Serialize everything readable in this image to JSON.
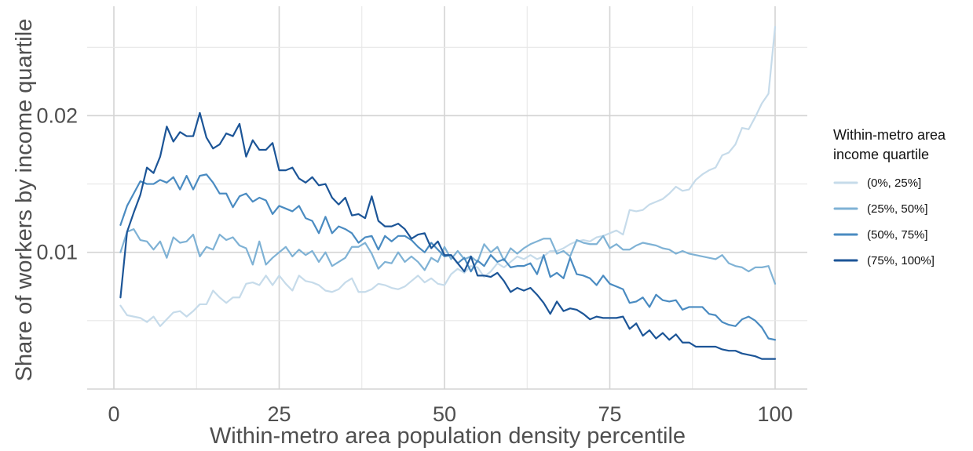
{
  "chart_data": {
    "type": "line",
    "title": "",
    "xlabel": "Within-metro area population density percentile",
    "ylabel": "Share of workers by income quartile",
    "xlim": [
      1,
      100
    ],
    "ylim": [
      0.0,
      0.028
    ],
    "x_ticks": [
      0,
      25,
      50,
      75,
      100
    ],
    "x_tick_labels": [
      "0",
      "25",
      "50",
      "75",
      "100"
    ],
    "y_ticks": [
      0.01,
      0.02
    ],
    "y_tick_labels": [
      "0.01",
      "0.02"
    ],
    "grid": true,
    "legend_position": "right",
    "legend_title_lines": [
      "Within-metro area",
      "income quartile"
    ],
    "series": [
      {
        "name": "(0%, 25%]",
        "color": "#c6dbea",
        "x": [
          1,
          2,
          3,
          4,
          5,
          6,
          7,
          8,
          9,
          10,
          11,
          12,
          13,
          14,
          15,
          16,
          17,
          18,
          19,
          20,
          21,
          22,
          23,
          24,
          25,
          26,
          27,
          28,
          29,
          30,
          31,
          32,
          33,
          34,
          35,
          36,
          37,
          38,
          39,
          40,
          41,
          42,
          43,
          44,
          45,
          46,
          47,
          48,
          49,
          50,
          51,
          52,
          53,
          54,
          55,
          56,
          57,
          58,
          59,
          60,
          61,
          62,
          63,
          64,
          65,
          66,
          67,
          68,
          69,
          70,
          71,
          72,
          73,
          74,
          75,
          76,
          77,
          78,
          79,
          80,
          81,
          82,
          83,
          84,
          85,
          86,
          87,
          88,
          89,
          90,
          91,
          92,
          93,
          94,
          95,
          96,
          97,
          98,
          99,
          100
        ],
        "values": [
          0.0061,
          0.0054,
          0.0053,
          0.0052,
          0.0049,
          0.0053,
          0.0046,
          0.0051,
          0.0056,
          0.0057,
          0.0053,
          0.0057,
          0.0062,
          0.0062,
          0.0072,
          0.0067,
          0.0063,
          0.0067,
          0.0067,
          0.0077,
          0.0078,
          0.0076,
          0.0083,
          0.0076,
          0.0083,
          0.0077,
          0.0072,
          0.0083,
          0.0079,
          0.0078,
          0.0076,
          0.0072,
          0.0071,
          0.0073,
          0.0078,
          0.0081,
          0.0071,
          0.0071,
          0.0073,
          0.0077,
          0.0076,
          0.0074,
          0.0073,
          0.0075,
          0.0079,
          0.0083,
          0.0078,
          0.0081,
          0.0077,
          0.0076,
          0.0084,
          0.0088,
          0.0085,
          0.009,
          0.0089,
          0.0082,
          0.0086,
          0.0092,
          0.0089,
          0.0093,
          0.0097,
          0.0095,
          0.0098,
          0.0095,
          0.0097,
          0.0101,
          0.0101,
          0.0103,
          0.0106,
          0.0108,
          0.0109,
          0.0108,
          0.0111,
          0.0112,
          0.0114,
          0.0116,
          0.0113,
          0.0131,
          0.013,
          0.0131,
          0.0135,
          0.0137,
          0.0139,
          0.0143,
          0.0148,
          0.0145,
          0.0146,
          0.0153,
          0.0157,
          0.016,
          0.0162,
          0.0171,
          0.0173,
          0.0179,
          0.0191,
          0.019,
          0.0199,
          0.0209,
          0.0216,
          0.0265
        ]
      },
      {
        "name": "(25%, 50%]",
        "color": "#7fb2d5",
        "x": [
          1,
          2,
          3,
          4,
          5,
          6,
          7,
          8,
          9,
          10,
          11,
          12,
          13,
          14,
          15,
          16,
          17,
          18,
          19,
          20,
          21,
          22,
          23,
          24,
          25,
          26,
          27,
          28,
          29,
          30,
          31,
          32,
          33,
          34,
          35,
          36,
          37,
          38,
          39,
          40,
          41,
          42,
          43,
          44,
          45,
          46,
          47,
          48,
          49,
          50,
          51,
          52,
          53,
          54,
          55,
          56,
          57,
          58,
          59,
          60,
          61,
          62,
          63,
          64,
          65,
          66,
          67,
          68,
          69,
          70,
          71,
          72,
          73,
          74,
          75,
          76,
          77,
          78,
          79,
          80,
          81,
          82,
          83,
          84,
          85,
          86,
          87,
          88,
          89,
          90,
          91,
          92,
          93,
          94,
          95,
          96,
          97,
          98,
          99,
          100
        ],
        "values": [
          0.01,
          0.0115,
          0.0117,
          0.0109,
          0.0108,
          0.0102,
          0.0108,
          0.0096,
          0.0111,
          0.0107,
          0.0108,
          0.0113,
          0.0097,
          0.0104,
          0.0102,
          0.0113,
          0.0109,
          0.0111,
          0.0105,
          0.0103,
          0.0091,
          0.0108,
          0.0091,
          0.0096,
          0.01,
          0.0104,
          0.0097,
          0.0102,
          0.0098,
          0.0101,
          0.0093,
          0.01,
          0.009,
          0.0093,
          0.0096,
          0.0104,
          0.0104,
          0.0107,
          0.0099,
          0.0088,
          0.0093,
          0.0092,
          0.01,
          0.0093,
          0.0097,
          0.0093,
          0.0087,
          0.0096,
          0.0093,
          0.0104,
          0.0095,
          0.0101,
          0.0095,
          0.0097,
          0.0093,
          0.0106,
          0.01,
          0.0104,
          0.0094,
          0.0103,
          0.0099,
          0.0103,
          0.0106,
          0.0108,
          0.011,
          0.011,
          0.0099,
          0.0101,
          0.0097,
          0.0109,
          0.0107,
          0.0106,
          0.0106,
          0.0112,
          0.0103,
          0.0106,
          0.0102,
          0.0102,
          0.0105,
          0.0107,
          0.0106,
          0.0105,
          0.0103,
          0.0102,
          0.0099,
          0.0101,
          0.0099,
          0.0098,
          0.0097,
          0.0096,
          0.0095,
          0.0098,
          0.0092,
          0.009,
          0.0089,
          0.0086,
          0.0089,
          0.0089,
          0.009,
          0.0077
        ]
      },
      {
        "name": "(50%, 75%]",
        "color": "#4a8bc1",
        "x": [
          1,
          2,
          3,
          4,
          5,
          6,
          7,
          8,
          9,
          10,
          11,
          12,
          13,
          14,
          15,
          16,
          17,
          18,
          19,
          20,
          21,
          22,
          23,
          24,
          25,
          26,
          27,
          28,
          29,
          30,
          31,
          32,
          33,
          34,
          35,
          36,
          37,
          38,
          39,
          40,
          41,
          42,
          43,
          44,
          45,
          46,
          47,
          48,
          49,
          50,
          51,
          52,
          53,
          54,
          55,
          56,
          57,
          58,
          59,
          60,
          61,
          62,
          63,
          64,
          65,
          66,
          67,
          68,
          69,
          70,
          71,
          72,
          73,
          74,
          75,
          76,
          77,
          78,
          79,
          80,
          81,
          82,
          83,
          84,
          85,
          86,
          87,
          88,
          89,
          90,
          91,
          92,
          93,
          94,
          95,
          96,
          97,
          98,
          99,
          100
        ],
        "values": [
          0.012,
          0.0134,
          0.0143,
          0.0152,
          0.015,
          0.015,
          0.0153,
          0.0151,
          0.0155,
          0.0146,
          0.0156,
          0.0146,
          0.0156,
          0.0157,
          0.0151,
          0.0143,
          0.0143,
          0.0133,
          0.0141,
          0.0143,
          0.0137,
          0.014,
          0.0138,
          0.0128,
          0.0134,
          0.0132,
          0.013,
          0.0134,
          0.0125,
          0.0123,
          0.0114,
          0.0126,
          0.0114,
          0.0119,
          0.0117,
          0.0114,
          0.0107,
          0.0111,
          0.0112,
          0.0102,
          0.0112,
          0.0108,
          0.0112,
          0.0112,
          0.0109,
          0.0104,
          0.01,
          0.0107,
          0.0102,
          0.0097,
          0.0098,
          0.0092,
          0.0096,
          0.0086,
          0.0094,
          0.009,
          0.0098,
          0.0093,
          0.0095,
          0.0089,
          0.009,
          0.009,
          0.0092,
          0.0084,
          0.0098,
          0.0082,
          0.0085,
          0.0081,
          0.0096,
          0.0084,
          0.0083,
          0.0081,
          0.0076,
          0.0083,
          0.0077,
          0.0075,
          0.0073,
          0.0063,
          0.0064,
          0.0067,
          0.006,
          0.0069,
          0.0065,
          0.0064,
          0.0065,
          0.0058,
          0.006,
          0.006,
          0.006,
          0.0055,
          0.0054,
          0.0049,
          0.0047,
          0.0046,
          0.0051,
          0.0053,
          0.005,
          0.0045,
          0.0037,
          0.0036
        ]
      },
      {
        "name": "(75%, 100%]",
        "color": "#1c5597",
        "x": [
          1,
          2,
          3,
          4,
          5,
          6,
          7,
          8,
          9,
          10,
          11,
          12,
          13,
          14,
          15,
          16,
          17,
          18,
          19,
          20,
          21,
          22,
          23,
          24,
          25,
          26,
          27,
          28,
          29,
          30,
          31,
          32,
          33,
          34,
          35,
          36,
          37,
          38,
          39,
          40,
          41,
          42,
          43,
          44,
          45,
          46,
          47,
          48,
          49,
          50,
          51,
          52,
          53,
          54,
          55,
          56,
          57,
          58,
          59,
          60,
          61,
          62,
          63,
          64,
          65,
          66,
          67,
          68,
          69,
          70,
          71,
          72,
          73,
          74,
          75,
          76,
          77,
          78,
          79,
          80,
          81,
          82,
          83,
          84,
          85,
          86,
          87,
          88,
          89,
          90,
          91,
          92,
          93,
          94,
          95,
          96,
          97,
          98,
          99,
          100
        ],
        "values": [
          0.0067,
          0.0115,
          0.0129,
          0.0142,
          0.0162,
          0.0158,
          0.017,
          0.0192,
          0.0181,
          0.0188,
          0.0185,
          0.0185,
          0.0202,
          0.0184,
          0.0176,
          0.0179,
          0.0187,
          0.0185,
          0.0194,
          0.017,
          0.0182,
          0.0175,
          0.0175,
          0.018,
          0.016,
          0.016,
          0.0162,
          0.0154,
          0.0151,
          0.0155,
          0.0149,
          0.015,
          0.014,
          0.0135,
          0.014,
          0.0127,
          0.0128,
          0.0125,
          0.0141,
          0.0123,
          0.0119,
          0.0119,
          0.0121,
          0.0117,
          0.011,
          0.0113,
          0.0114,
          0.0103,
          0.0108,
          0.0098,
          0.0098,
          0.0092,
          0.0086,
          0.0097,
          0.0083,
          0.0083,
          0.0082,
          0.0085,
          0.0079,
          0.0071,
          0.0074,
          0.0072,
          0.0074,
          0.0069,
          0.0063,
          0.0055,
          0.0064,
          0.0057,
          0.0059,
          0.0058,
          0.0055,
          0.0051,
          0.0053,
          0.0052,
          0.0052,
          0.0052,
          0.0053,
          0.0044,
          0.0048,
          0.0039,
          0.0043,
          0.0037,
          0.0041,
          0.0036,
          0.004,
          0.0034,
          0.0034,
          0.0031,
          0.0031,
          0.0031,
          0.0031,
          0.0029,
          0.0028,
          0.0028,
          0.0026,
          0.0025,
          0.0024,
          0.0022,
          0.0022,
          0.0022
        ]
      }
    ]
  }
}
